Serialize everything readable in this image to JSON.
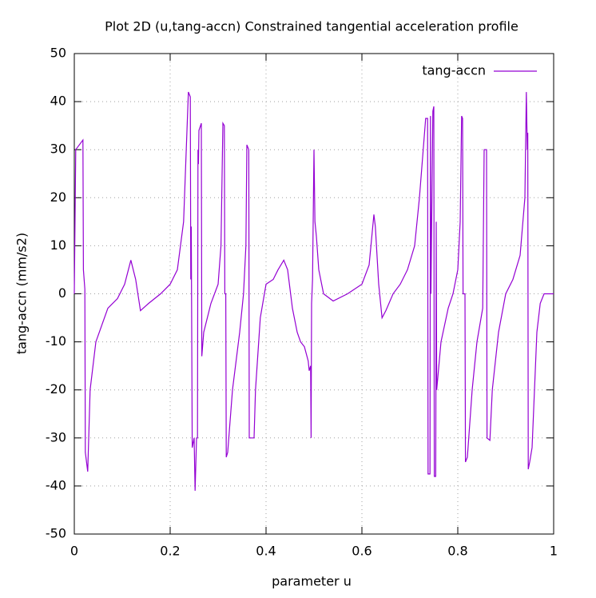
{
  "chart_data": {
    "type": "line",
    "title": "Plot 2D (u,tang-accn) Constrained tangential acceleration profile",
    "x_label": "parameter u",
    "y_label": "tang-accn (mm/s2)",
    "xlim": [
      0,
      1
    ],
    "ylim": [
      -50,
      50
    ],
    "xticks": [
      0,
      0.2,
      0.4,
      0.6,
      0.8,
      1
    ],
    "yticks": [
      -50,
      -40,
      -30,
      -20,
      -10,
      0,
      10,
      20,
      30,
      40,
      50
    ],
    "grid": true,
    "legend": "top-right",
    "x": [
      0,
      0.003,
      0.018,
      0.019,
      0.022,
      0.023,
      0.028,
      0.033,
      0.045,
      0.07,
      0.09,
      0.105,
      0.118,
      0.128,
      0.138,
      0.155,
      0.18,
      0.2,
      0.215,
      0.228,
      0.238,
      0.242,
      0.243,
      0.244,
      0.246,
      0.25,
      0.252,
      0.255,
      0.257,
      0.258,
      0.259,
      0.26,
      0.265,
      0.266,
      0.27,
      0.285,
      0.3,
      0.306,
      0.31,
      0.313,
      0.314,
      0.316,
      0.317,
      0.32,
      0.33,
      0.345,
      0.353,
      0.358,
      0.36,
      0.364,
      0.365,
      0.375,
      0.378,
      0.388,
      0.4,
      0.415,
      0.425,
      0.437,
      0.445,
      0.455,
      0.465,
      0.472,
      0.48,
      0.488,
      0.49,
      0.493,
      0.494,
      0.495,
      0.497,
      0.5,
      0.502,
      0.505,
      0.51,
      0.52,
      0.54,
      0.57,
      0.6,
      0.615,
      0.625,
      0.628,
      0.635,
      0.642,
      0.65,
      0.665,
      0.68,
      0.695,
      0.71,
      0.72,
      0.733,
      0.737,
      0.738,
      0.742,
      0.743,
      0.744,
      0.748,
      0.75,
      0.751,
      0.754,
      0.755,
      0.756,
      0.765,
      0.78,
      0.79,
      0.8,
      0.805,
      0.808,
      0.81,
      0.811,
      0.815,
      0.816,
      0.82,
      0.83,
      0.84,
      0.852,
      0.855,
      0.86,
      0.861,
      0.867,
      0.872,
      0.885,
      0.9,
      0.915,
      0.93,
      0.94,
      0.943,
      0.945,
      0.946,
      0.947,
      0.95,
      0.955,
      0.96,
      0.965,
      0.972,
      0.98,
      1
    ],
    "series": [
      {
        "name": "tang-accn",
        "color": "#9400d3",
        "values": [
          0,
          30,
          32,
          5,
          1,
          -33,
          -37,
          -20,
          -10,
          -3,
          -1,
          2,
          7,
          3,
          -3.5,
          -2,
          0,
          2,
          5,
          15,
          42,
          41,
          3,
          14,
          -32,
          -30,
          -41,
          -30,
          -30,
          30,
          27,
          34,
          35.5,
          -13,
          -8,
          -2,
          2,
          10,
          35.5,
          35,
          0,
          0,
          -34,
          -33,
          -20,
          -8,
          0,
          10,
          31,
          30,
          -30,
          -30,
          -20,
          -5,
          2,
          3,
          5,
          7,
          5,
          -3,
          -8,
          -10,
          -11,
          -14,
          -16,
          -15,
          -30,
          -2,
          3,
          30,
          15,
          12,
          5,
          0,
          -1.5,
          0,
          2,
          6,
          16.5,
          14,
          2,
          -5,
          -3.5,
          0,
          2,
          5,
          10,
          20,
          36.5,
          36.5,
          -37.5,
          -37.5,
          37,
          0,
          38,
          39,
          -38,
          -38,
          15,
          -20,
          -10,
          -3,
          0,
          5,
          15,
          37,
          36.5,
          0,
          0,
          -35,
          -34,
          -20,
          -10,
          -3,
          30,
          30,
          -30,
          -30.5,
          -20,
          -8,
          0,
          3,
          8,
          20,
          42,
          30,
          33.5,
          -36.5,
          -35,
          -32,
          -20,
          -8,
          -2,
          0,
          0
        ]
      }
    ]
  }
}
